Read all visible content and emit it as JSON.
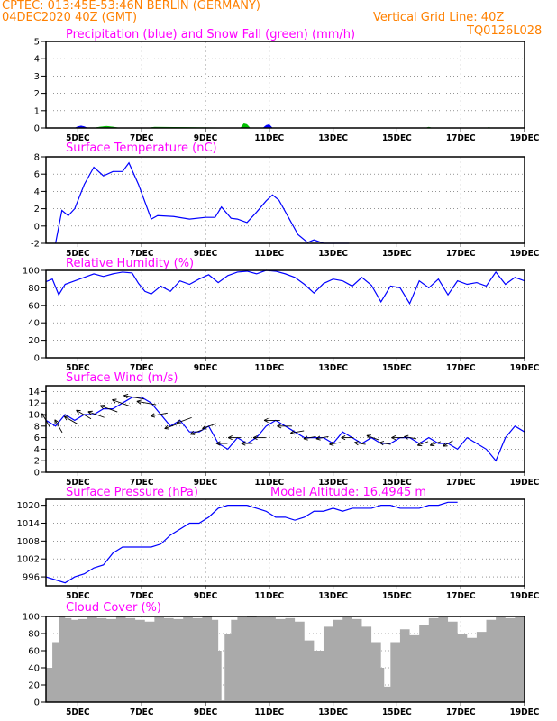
{
  "header": {
    "line1": "CPTEC:   013:45E-53:46N   BERLIN (GERMANY)",
    "line2": "04DEC2020 40Z (GMT)",
    "grid_note": "Vertical Grid Line: 40Z",
    "code": "TQ0126L028"
  },
  "colors": {
    "header": "#ff8000",
    "title": "#ff00ff",
    "line": "#0000ff",
    "snow": "#00c000",
    "cloud": "#aaaaaa"
  },
  "chart_data": [
    {
      "id": "precip",
      "type": "area",
      "title": "Precipitation (blue) and Snow Fall (green) (mm/h)",
      "ylim": [
        0,
        5
      ],
      "yticks": [
        0,
        1,
        2,
        3,
        4,
        5
      ],
      "xticks": [
        "5DEC",
        "7DEC",
        "9DEC",
        "11DEC",
        "13DEC",
        "15DEC",
        "17DEC",
        "19DEC"
      ],
      "series": [
        {
          "name": "Precipitation",
          "color": "#0000ff",
          "x": [
            4.9,
            5.0,
            5.1,
            5.2,
            5.3,
            10.8,
            10.9,
            11.0,
            11.1
          ],
          "y": [
            0,
            0.08,
            0.12,
            0.08,
            0,
            0,
            0.15,
            0.2,
            0
          ]
        },
        {
          "name": "Snow Fall",
          "color": "#00c000",
          "x": [
            5.5,
            5.7,
            5.9,
            6.1,
            6.3,
            7.2,
            7.4,
            10.1,
            10.2,
            10.3,
            10.4,
            15.9,
            16.0,
            16.1,
            17.8,
            17.9
          ],
          "y": [
            0,
            0.06,
            0.1,
            0.06,
            0,
            0,
            0.05,
            0,
            0.25,
            0.2,
            0,
            0,
            0.05,
            0,
            0,
            0.04
          ]
        }
      ]
    },
    {
      "id": "temp",
      "type": "line",
      "title": "Surface Temperature (nC)",
      "ylim": [
        -2,
        8
      ],
      "yticks": [
        -2,
        0,
        2,
        4,
        6,
        8
      ],
      "xticks": [
        "5DEC",
        "7DEC",
        "9DEC",
        "11DEC",
        "13DEC",
        "15DEC",
        "17DEC",
        "19DEC"
      ],
      "series": [
        {
          "name": "Temperature",
          "color": "#0000ff",
          "x": [
            4.3,
            4.5,
            4.7,
            4.9,
            5.2,
            5.5,
            5.8,
            6.1,
            6.4,
            6.6,
            6.9,
            7.1,
            7.3,
            7.5,
            8.0,
            8.5,
            9.0,
            9.3,
            9.5,
            9.8,
            10.0,
            10.3,
            10.6,
            10.9,
            11.1,
            11.3,
            11.6,
            11.9,
            12.2,
            12.4,
            12.7,
            13.0,
            13.5
          ],
          "y": [
            -2,
            1.8,
            1.2,
            2.0,
            4.8,
            6.8,
            5.8,
            6.3,
            6.3,
            7.3,
            4.8,
            2.8,
            0.8,
            1.2,
            1.1,
            0.8,
            1.0,
            1.0,
            2.2,
            0.9,
            0.8,
            0.4,
            1.6,
            2.9,
            3.6,
            3.0,
            1.0,
            -1.0,
            -1.9,
            -1.6,
            -2.0,
            -2.1,
            -2.1
          ]
        }
      ]
    },
    {
      "id": "rh",
      "type": "line",
      "title": "Relative Humidity (%)",
      "ylim": [
        0,
        100
      ],
      "yticks": [
        0,
        20,
        40,
        60,
        80,
        100
      ],
      "xticks": [
        "5DEC",
        "7DEC",
        "9DEC",
        "11DEC",
        "13DEC",
        "15DEC",
        "17DEC",
        "19DEC"
      ],
      "series": [
        {
          "name": "Relative Humidity",
          "color": "#0000ff",
          "x": [
            4.0,
            4.2,
            4.4,
            4.6,
            4.9,
            5.2,
            5.5,
            5.8,
            6.1,
            6.4,
            6.7,
            6.9,
            7.1,
            7.3,
            7.6,
            7.9,
            8.2,
            8.5,
            8.8,
            9.1,
            9.4,
            9.7,
            10.0,
            10.3,
            10.6,
            10.9,
            11.2,
            11.5,
            11.8,
            12.1,
            12.4,
            12.7,
            13.0,
            13.3,
            13.6,
            13.9,
            14.2,
            14.5,
            14.8,
            15.1,
            15.4,
            15.7,
            16.0,
            16.3,
            16.6,
            16.9,
            17.2,
            17.5,
            17.8,
            18.1,
            18.4,
            18.7,
            19.0
          ],
          "y": [
            87,
            90,
            72,
            84,
            88,
            92,
            96,
            93,
            96,
            98,
            97,
            85,
            76,
            73,
            82,
            76,
            88,
            84,
            90,
            95,
            86,
            94,
            98,
            99,
            96,
            100,
            99,
            96,
            92,
            84,
            74,
            85,
            90,
            88,
            82,
            92,
            83,
            64,
            82,
            80,
            62,
            88,
            80,
            90,
            72,
            88,
            84,
            86,
            82,
            98,
            84,
            92,
            88
          ]
        }
      ]
    },
    {
      "id": "wind",
      "type": "line",
      "title": "Surface Wind (m/s)",
      "ylim": [
        0,
        15
      ],
      "yticks": [
        0,
        2,
        4,
        6,
        8,
        10,
        12,
        14
      ],
      "xticks": [
        "5DEC",
        "7DEC",
        "9DEC",
        "11DEC",
        "13DEC",
        "15DEC",
        "17DEC",
        "19DEC"
      ],
      "series": [
        {
          "name": "Wind Speed",
          "color": "#0000ff",
          "x": [
            4.0,
            4.3,
            4.6,
            4.9,
            5.2,
            5.5,
            5.8,
            6.1,
            6.4,
            6.7,
            7.0,
            7.3,
            7.6,
            7.9,
            8.2,
            8.5,
            8.8,
            9.1,
            9.4,
            9.7,
            10.0,
            10.3,
            10.6,
            10.9,
            11.2,
            11.5,
            11.8,
            12.1,
            12.4,
            12.7,
            13.0,
            13.3,
            13.6,
            13.9,
            14.2,
            14.5,
            14.8,
            15.1,
            15.4,
            15.7,
            16.0,
            16.3,
            16.6,
            16.9,
            17.2,
            17.5,
            17.8,
            18.1,
            18.4,
            18.7,
            19.0
          ],
          "y": [
            9,
            8,
            10,
            9,
            10,
            10,
            11,
            11,
            12,
            13,
            13,
            12,
            10,
            8,
            9,
            7,
            7,
            8,
            5,
            4,
            6,
            5,
            6,
            8,
            9,
            8,
            7,
            6,
            6,
            6,
            5,
            7,
            6,
            5,
            6,
            5,
            5,
            6,
            6,
            5,
            6,
            5,
            5,
            4,
            6,
            5,
            4,
            2,
            6,
            8,
            7
          ]
        }
      ],
      "barbs_dir_deg": [
        330,
        330,
        300,
        300,
        290,
        290,
        290,
        280,
        280,
        260,
        250,
        250,
        250,
        250,
        270,
        270,
        270,
        270,
        270,
        270,
        260,
        260,
        260,
        260,
        270,
        280,
        290,
        280,
        270,
        280,
        250,
        250,
        240
      ]
    },
    {
      "id": "press",
      "type": "line",
      "title": "Surface Pressure (hPa)",
      "annotation": "Model Altitude: 16.4945 m",
      "ylim": [
        993,
        1022
      ],
      "yticks": [
        996,
        1002,
        1008,
        1014,
        1020
      ],
      "xticks": [
        "5DEC",
        "7DEC",
        "9DEC",
        "11DEC",
        "13DEC",
        "15DEC",
        "17DEC",
        "19DEC"
      ],
      "series": [
        {
          "name": "Pressure",
          "color": "#0000ff",
          "x": [
            4.0,
            4.3,
            4.6,
            4.9,
            5.2,
            5.5,
            5.8,
            6.1,
            6.4,
            6.7,
            7.0,
            7.3,
            7.6,
            7.9,
            8.2,
            8.5,
            8.8,
            9.1,
            9.4,
            9.7,
            10.0,
            10.3,
            10.6,
            10.9,
            11.2,
            11.5,
            11.8,
            12.1,
            12.4,
            12.7,
            13.0,
            13.3,
            13.6,
            13.9,
            14.2,
            14.5,
            14.8,
            15.1,
            15.4,
            15.7,
            16.0,
            16.3,
            16.6,
            16.9
          ],
          "y": [
            996,
            995,
            994,
            996,
            997,
            999,
            1000,
            1004,
            1006,
            1006,
            1006,
            1006,
            1007,
            1010,
            1012,
            1014,
            1014,
            1016,
            1019,
            1020,
            1020,
            1020,
            1019,
            1018,
            1016,
            1016,
            1015,
            1016,
            1018,
            1018,
            1019,
            1018,
            1019,
            1019,
            1019,
            1020,
            1020,
            1019,
            1019,
            1019,
            1020,
            1020,
            1021,
            1021
          ]
        }
      ]
    },
    {
      "id": "cloud",
      "type": "bar",
      "title": "Cloud Cover (%)",
      "ylim": [
        0,
        100
      ],
      "yticks": [
        0,
        20,
        40,
        60,
        80,
        100
      ],
      "xticks": [
        "5DEC",
        "7DEC",
        "9DEC",
        "11DEC",
        "13DEC",
        "15DEC",
        "17DEC",
        "19DEC"
      ],
      "series": [
        {
          "name": "Cloud Cover",
          "color": "#aaaaaa",
          "x": [
            4.0,
            4.2,
            4.4,
            4.6,
            4.8,
            5.0,
            5.3,
            5.6,
            5.9,
            6.2,
            6.5,
            6.8,
            7.1,
            7.4,
            7.7,
            8.0,
            8.3,
            8.6,
            8.9,
            9.2,
            9.4,
            9.5,
            9.6,
            9.8,
            10.0,
            10.3,
            10.6,
            10.9,
            11.2,
            11.5,
            11.8,
            12.1,
            12.4,
            12.7,
            13.0,
            13.3,
            13.6,
            13.9,
            14.2,
            14.5,
            14.6,
            14.8,
            15.1,
            15.4,
            15.7,
            16.0,
            16.3,
            16.6,
            16.9,
            17.2,
            17.5,
            17.8,
            18.1,
            18.4,
            18.7,
            19.0
          ],
          "y": [
            40,
            70,
            100,
            98,
            96,
            97,
            99,
            98,
            97,
            100,
            98,
            96,
            94,
            99,
            98,
            97,
            99,
            98,
            100,
            96,
            60,
            2,
            80,
            96,
            99,
            100,
            99,
            99,
            97,
            98,
            94,
            72,
            60,
            88,
            96,
            99,
            97,
            88,
            70,
            40,
            18,
            70,
            85,
            78,
            90,
            98,
            99,
            94,
            80,
            75,
            82,
            96,
            99,
            98,
            99,
            99
          ]
        }
      ]
    }
  ]
}
